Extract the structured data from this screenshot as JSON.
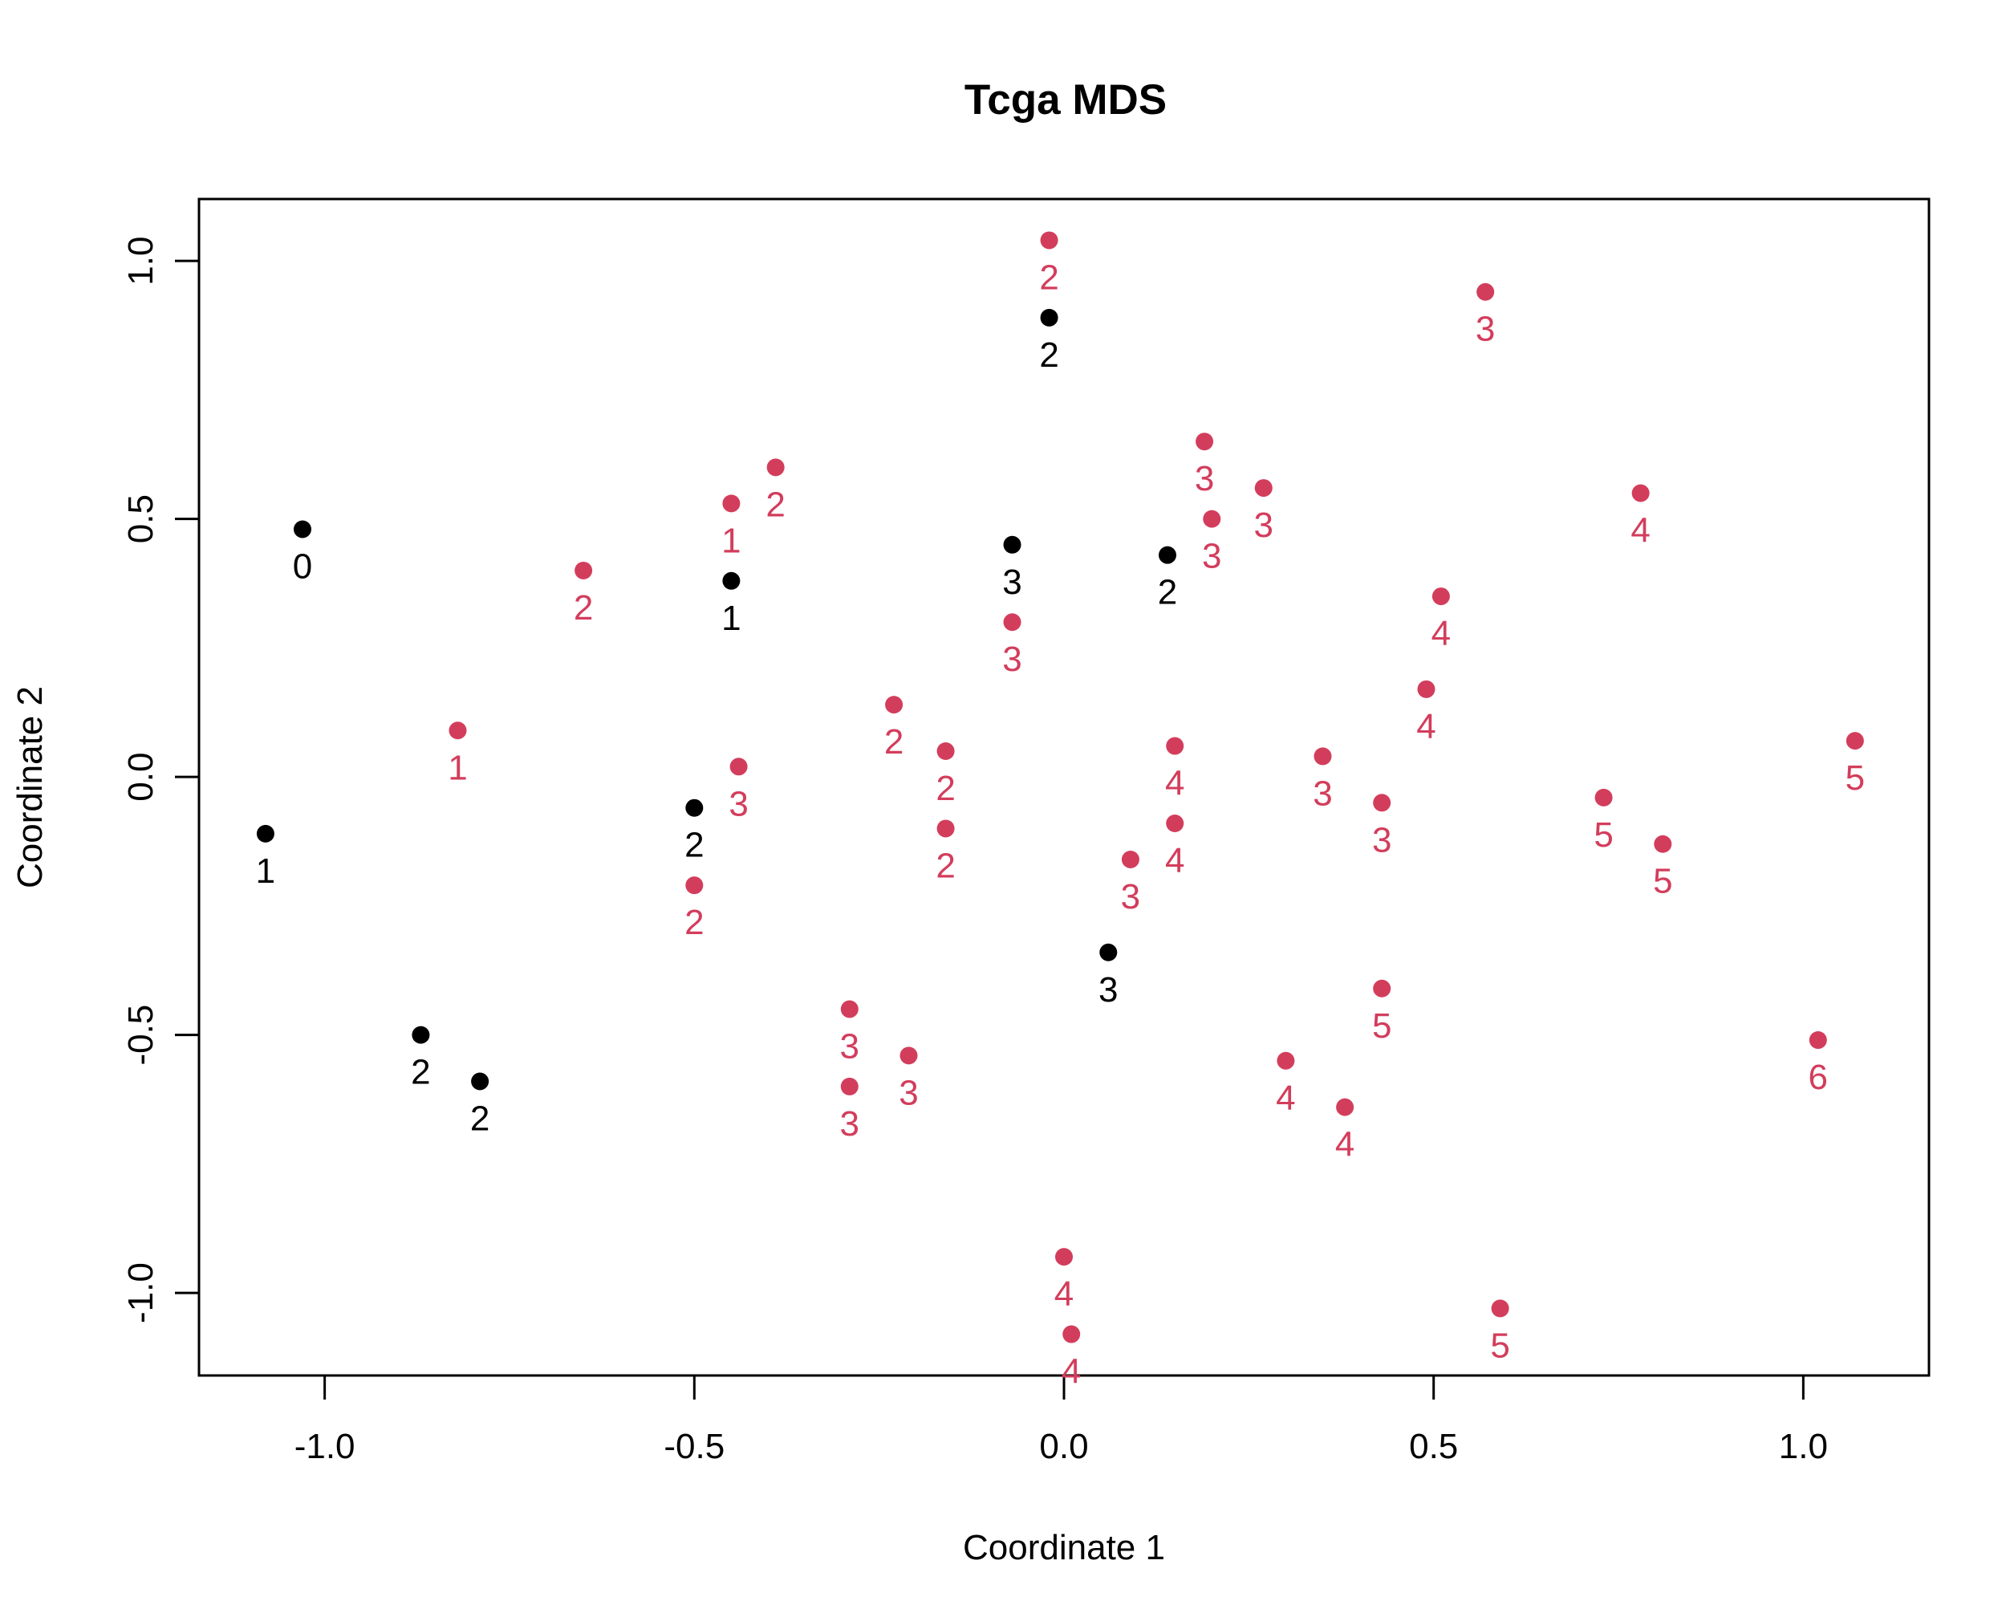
{
  "colors": {
    "series_black": "#000000",
    "series_red": "#d33d5c"
  },
  "chart_data": {
    "type": "scatter",
    "title": "Tcga MDS",
    "xlabel": "Coordinate 1",
    "ylabel": "Coordinate 2",
    "xlim": [
      -1.17,
      1.17
    ],
    "ylim": [
      -1.16,
      1.12
    ],
    "xticks": [
      -1.0,
      -0.5,
      0.0,
      0.5,
      1.0
    ],
    "xtick_labels": [
      "-1.0",
      "-0.5",
      "0.0",
      "0.5",
      "1.0"
    ],
    "yticks": [
      -1.0,
      -0.5,
      0.0,
      0.5,
      1.0
    ],
    "ytick_labels": [
      "-1.0",
      "-0.5",
      "0.0",
      "0.5",
      "1.0"
    ],
    "grid": false,
    "series": [
      {
        "color": "#000000",
        "points": [
          {
            "x": -1.03,
            "y": 0.48,
            "label": "0"
          },
          {
            "x": -1.08,
            "y": -0.11,
            "label": "1"
          },
          {
            "x": -0.45,
            "y": 0.38,
            "label": "1"
          },
          {
            "x": -0.87,
            "y": -0.5,
            "label": "2"
          },
          {
            "x": -0.79,
            "y": -0.59,
            "label": "2"
          },
          {
            "x": -0.5,
            "y": -0.06,
            "label": "2"
          },
          {
            "x": -0.02,
            "y": 0.89,
            "label": "2"
          },
          {
            "x": 0.14,
            "y": 0.43,
            "label": "2"
          },
          {
            "x": -0.07,
            "y": 0.45,
            "label": "3"
          },
          {
            "x": 0.06,
            "y": -0.34,
            "label": "3"
          }
        ]
      },
      {
        "color": "#d33d5c",
        "points": [
          {
            "x": -0.82,
            "y": 0.09,
            "label": "1"
          },
          {
            "x": -0.45,
            "y": 0.53,
            "label": "1"
          },
          {
            "x": -0.65,
            "y": 0.4,
            "label": "2"
          },
          {
            "x": -0.39,
            "y": 0.6,
            "label": "2"
          },
          {
            "x": -0.02,
            "y": 1.04,
            "label": "2"
          },
          {
            "x": -0.23,
            "y": 0.14,
            "label": "2"
          },
          {
            "x": -0.16,
            "y": 0.05,
            "label": "2"
          },
          {
            "x": -0.16,
            "y": -0.1,
            "label": "2"
          },
          {
            "x": -0.5,
            "y": -0.21,
            "label": "2"
          },
          {
            "x": -0.44,
            "y": 0.02,
            "label": "3"
          },
          {
            "x": -0.07,
            "y": 0.3,
            "label": "3"
          },
          {
            "x": 0.19,
            "y": 0.65,
            "label": "3"
          },
          {
            "x": 0.2,
            "y": 0.5,
            "label": "3"
          },
          {
            "x": 0.27,
            "y": 0.56,
            "label": "3"
          },
          {
            "x": 0.57,
            "y": 0.94,
            "label": "3"
          },
          {
            "x": 0.35,
            "y": 0.04,
            "label": "3"
          },
          {
            "x": 0.43,
            "y": -0.05,
            "label": "3"
          },
          {
            "x": 0.09,
            "y": -0.16,
            "label": "3"
          },
          {
            "x": -0.29,
            "y": -0.45,
            "label": "3"
          },
          {
            "x": -0.29,
            "y": -0.6,
            "label": "3"
          },
          {
            "x": -0.21,
            "y": -0.54,
            "label": "3"
          },
          {
            "x": 0.15,
            "y": 0.06,
            "label": "4"
          },
          {
            "x": 0.15,
            "y": -0.09,
            "label": "4"
          },
          {
            "x": 0.51,
            "y": 0.35,
            "label": "4"
          },
          {
            "x": 0.49,
            "y": 0.17,
            "label": "4"
          },
          {
            "x": 0.78,
            "y": 0.55,
            "label": "4"
          },
          {
            "x": 0.3,
            "y": -0.55,
            "label": "4"
          },
          {
            "x": 0.38,
            "y": -0.64,
            "label": "4"
          },
          {
            "x": 0.0,
            "y": -0.93,
            "label": "4"
          },
          {
            "x": 0.01,
            "y": -1.08,
            "label": "4"
          },
          {
            "x": 0.73,
            "y": -0.04,
            "label": "5"
          },
          {
            "x": 0.81,
            "y": -0.13,
            "label": "5"
          },
          {
            "x": 1.07,
            "y": 0.07,
            "label": "5"
          },
          {
            "x": 0.43,
            "y": -0.41,
            "label": "5"
          },
          {
            "x": 0.59,
            "y": -1.03,
            "label": "5"
          },
          {
            "x": 1.02,
            "y": -0.51,
            "label": "6"
          }
        ]
      }
    ]
  }
}
